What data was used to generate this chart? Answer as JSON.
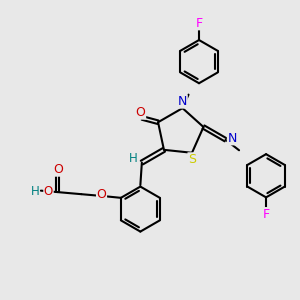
{
  "bg_color": "#e8e8e8",
  "atom_colors": {
    "C": "#000000",
    "N": "#0000cc",
    "O": "#cc0000",
    "S": "#cccc00",
    "F": "#ff00ff",
    "H": "#008080"
  },
  "bond_color": "#000000",
  "lw": 1.5,
  "ring_r": 0.78,
  "thiazo_r": 0.75
}
